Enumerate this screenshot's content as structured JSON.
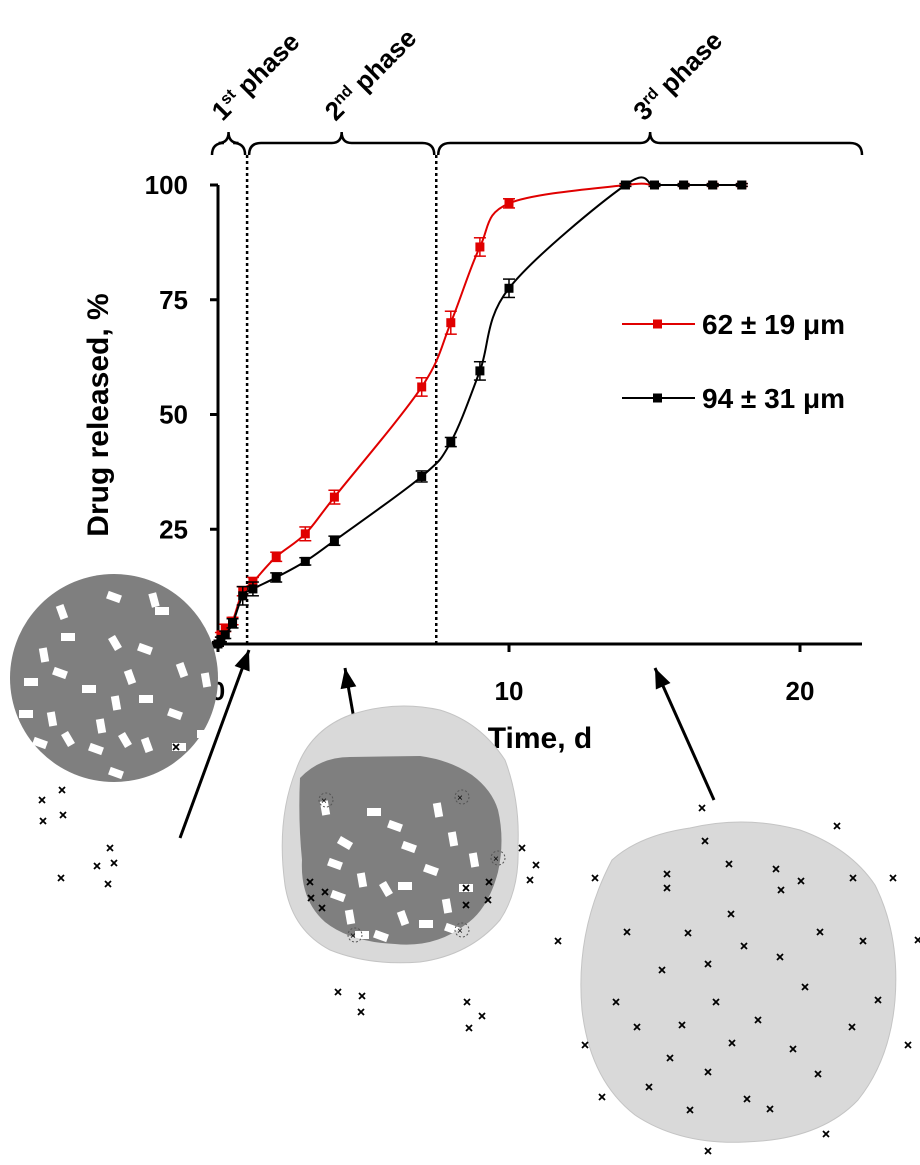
{
  "chart_data": {
    "type": "line",
    "xlabel": "Time, d",
    "ylabel": "Drug released, %",
    "xlim": [
      0,
      22
    ],
    "ylim": [
      0,
      100
    ],
    "x_ticks": [
      0,
      10,
      20
    ],
    "y_ticks": [
      0,
      25,
      50,
      75,
      100
    ],
    "grid": false,
    "legend_position": "right",
    "series": [
      {
        "name": "62 ± 19 μm",
        "color": "#e00000",
        "x": [
          0,
          0.1,
          0.25,
          0.5,
          0.85,
          1.2,
          2,
          3,
          4,
          7,
          8,
          9,
          10,
          14,
          15,
          16,
          17,
          18
        ],
        "y": [
          0,
          2,
          3.5,
          5,
          11.5,
          13.5,
          19,
          24,
          32,
          56,
          70,
          86.5,
          96,
          100,
          100,
          100,
          100,
          100
        ],
        "error": [
          0.5,
          0.5,
          0.8,
          0.8,
          1,
          1,
          1,
          1.5,
          1.5,
          2,
          2.5,
          2,
          1,
          0.3,
          0.3,
          0.3,
          0.3,
          0.3
        ]
      },
      {
        "name": "94 ± 31 μm",
        "color": "#000000",
        "x": [
          0,
          0.1,
          0.25,
          0.5,
          0.85,
          1.2,
          2,
          3,
          4,
          7,
          8,
          9,
          10,
          14,
          15,
          16,
          17,
          18
        ],
        "y": [
          0,
          1,
          2,
          4.5,
          10.5,
          12,
          14.5,
          18,
          22.5,
          36.5,
          44,
          59.5,
          77.5,
          100,
          100,
          100,
          100,
          100
        ],
        "error": [
          0.5,
          0.5,
          0.8,
          1,
          2,
          1.5,
          1,
          0.8,
          1,
          1.2,
          1,
          2,
          2,
          0.3,
          0.3,
          0.3,
          0.3,
          0.3
        ]
      }
    ],
    "phase_boundaries": [
      1,
      7.5
    ],
    "phases": [
      {
        "label": "1",
        "sup": "st",
        "rest": " phase",
        "start": 0,
        "end": 1
      },
      {
        "label": "2",
        "sup": "nd",
        "rest": " phase",
        "start": 1,
        "end": 7.5
      },
      {
        "label": "3",
        "sup": "rd",
        "rest": " phase",
        "start": 7.5,
        "end": 22
      }
    ]
  },
  "colors": {
    "matrix_dark": "#7f7f7f",
    "matrix_light": "#d9d9d9",
    "drug_crystal": "#ffffff",
    "released_drug": "#000000"
  }
}
